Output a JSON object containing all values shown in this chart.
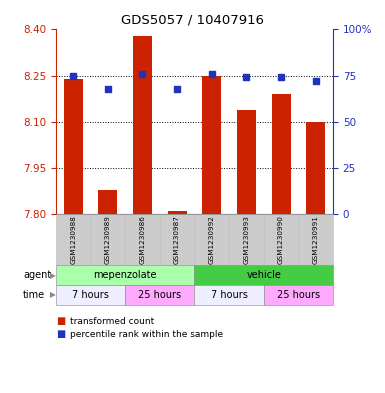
{
  "title": "GDS5057 / 10407916",
  "samples": [
    "GSM1230988",
    "GSM1230989",
    "GSM1230986",
    "GSM1230987",
    "GSM1230992",
    "GSM1230993",
    "GSM1230990",
    "GSM1230991"
  ],
  "transformed_counts": [
    8.24,
    7.88,
    8.38,
    7.81,
    8.25,
    8.14,
    8.19,
    8.1
  ],
  "percentile_ranks": [
    75,
    68,
    76,
    68,
    76,
    74,
    74,
    72
  ],
  "ylim": [
    7.8,
    8.4
  ],
  "yticks": [
    7.8,
    7.95,
    8.1,
    8.25,
    8.4
  ],
  "y2lim": [
    0,
    100
  ],
  "y2ticks": [
    0,
    25,
    50,
    75,
    100
  ],
  "y2labels": [
    "0",
    "25",
    "50",
    "75",
    "100%"
  ],
  "bar_color": "#cc2200",
  "dot_color": "#2233bb",
  "bar_bottom": 7.8,
  "agent_groups": [
    {
      "label": "mepenzolate",
      "start": 0,
      "end": 3,
      "color": "#aaffaa"
    },
    {
      "label": "vehicle",
      "start": 4,
      "end": 7,
      "color": "#44cc44"
    }
  ],
  "time_groups": [
    {
      "label": "7 hours",
      "start": 0,
      "end": 1,
      "color": "#eeeeff"
    },
    {
      "label": "25 hours",
      "start": 2,
      "end": 3,
      "color": "#ffaaff"
    },
    {
      "label": "7 hours",
      "start": 4,
      "end": 5,
      "color": "#eeeeff"
    },
    {
      "label": "25 hours",
      "start": 6,
      "end": 7,
      "color": "#ffaaff"
    }
  ],
  "legend_bar_label": "transformed count",
  "legend_dot_label": "percentile rank within the sample",
  "plot_bg_color": "#ffffff",
  "grid_yticks": [
    7.95,
    8.1,
    8.25
  ]
}
